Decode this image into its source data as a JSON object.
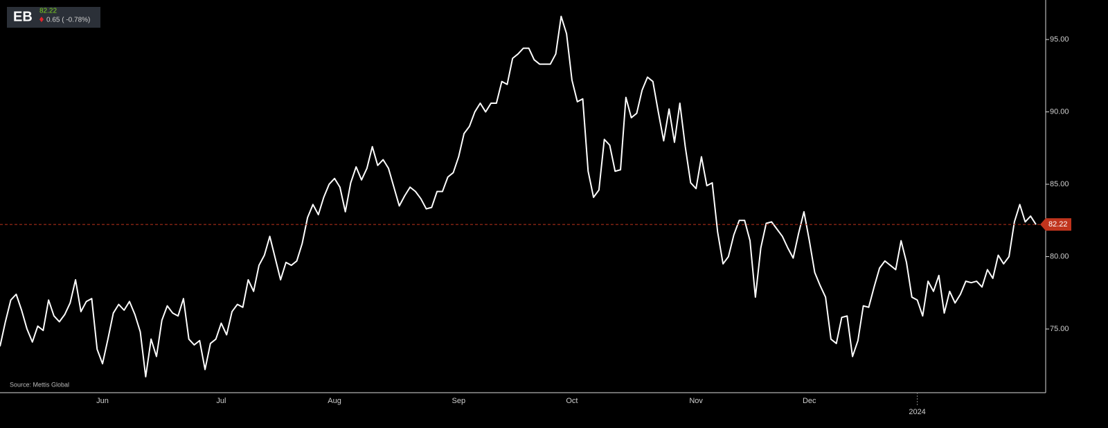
{
  "header": {
    "ticker": "EB",
    "change": "0.65 ( -0.78%)"
  },
  "source": "Source: Mettis Global",
  "chart_data": {
    "type": "line",
    "categories": [
      null,
      null,
      null,
      null,
      null,
      null,
      null,
      null,
      null,
      null,
      null,
      null,
      null,
      null,
      null,
      null,
      null,
      null,
      null,
      "Jun",
      null,
      null,
      null,
      null,
      null,
      null,
      null,
      null,
      null,
      null,
      null,
      null,
      null,
      null,
      null,
      null,
      null,
      null,
      null,
      null,
      null,
      "Jul",
      null,
      null,
      null,
      null,
      null,
      null,
      null,
      null,
      null,
      null,
      null,
      null,
      null,
      null,
      null,
      null,
      null,
      null,
      null,
      null,
      "Aug",
      null,
      null,
      null,
      null,
      null,
      null,
      null,
      null,
      null,
      null,
      null,
      null,
      null,
      null,
      null,
      null,
      null,
      null,
      null,
      null,
      null,
      null,
      "Sep",
      null,
      null,
      null,
      null,
      null,
      null,
      null,
      null,
      null,
      null,
      null,
      null,
      null,
      null,
      null,
      null,
      null,
      null,
      null,
      null,
      "Oct",
      null,
      null,
      null,
      null,
      null,
      null,
      null,
      null,
      null,
      null,
      null,
      null,
      null,
      null,
      null,
      null,
      null,
      null,
      null,
      null,
      null,
      null,
      "Nov",
      null,
      null,
      null,
      null,
      null,
      null,
      null,
      null,
      null,
      null,
      null,
      null,
      null,
      null,
      null,
      null,
      null,
      null,
      null,
      null,
      "Dec",
      null,
      null,
      null,
      null,
      null,
      null,
      null,
      null,
      null,
      null,
      null,
      null,
      null,
      null,
      null,
      null,
      null,
      null,
      null,
      "2024",
      null,
      null,
      null,
      null,
      null,
      null,
      null,
      null,
      null,
      null,
      null,
      null,
      null,
      null,
      null,
      null,
      null,
      null,
      null,
      null,
      null,
      null
    ],
    "values": [
      73.8,
      75.5,
      77.0,
      77.4,
      76.3,
      75.0,
      74.1,
      75.2,
      74.9,
      77.0,
      75.9,
      75.5,
      76.0,
      76.8,
      78.4,
      76.2,
      76.9,
      77.1,
      73.6,
      72.6,
      74.3,
      76.1,
      76.7,
      76.3,
      76.9,
      76.0,
      74.8,
      71.7,
      74.3,
      73.1,
      75.6,
      76.6,
      76.1,
      75.9,
      77.1,
      74.3,
      73.9,
      74.2,
      72.2,
      74.0,
      74.3,
      75.4,
      74.6,
      76.2,
      76.7,
      76.5,
      78.4,
      77.6,
      79.4,
      80.1,
      81.4,
      79.9,
      78.4,
      79.6,
      79.4,
      79.7,
      80.9,
      82.7,
      83.6,
      82.9,
      84.1,
      85.0,
      85.4,
      84.8,
      83.1,
      85.1,
      86.2,
      85.3,
      86.1,
      87.6,
      86.3,
      86.7,
      86.1,
      84.8,
      83.5,
      84.2,
      84.8,
      84.5,
      84.0,
      83.3,
      83.4,
      84.5,
      84.5,
      85.5,
      85.8,
      86.9,
      88.5,
      89.0,
      90.0,
      90.6,
      90.0,
      90.6,
      90.6,
      92.1,
      91.9,
      93.7,
      94.0,
      94.4,
      94.4,
      93.6,
      93.3,
      93.3,
      93.3,
      94.0,
      96.6,
      95.4,
      92.2,
      90.7,
      90.9,
      85.9,
      84.1,
      84.6,
      88.1,
      87.7,
      85.9,
      86.0,
      91.0,
      89.6,
      89.9,
      91.5,
      92.4,
      92.1,
      90.0,
      88.0,
      90.2,
      87.9,
      90.6,
      87.6,
      85.1,
      84.7,
      86.9,
      84.9,
      85.1,
      81.7,
      79.5,
      80.0,
      81.5,
      82.5,
      82.5,
      81.1,
      77.2,
      80.6,
      82.3,
      82.4,
      81.9,
      81.4,
      80.6,
      79.9,
      81.6,
      83.1,
      81.1,
      78.9,
      78.0,
      77.2,
      74.3,
      74.0,
      75.8,
      75.9,
      73.1,
      74.2,
      76.6,
      76.5,
      77.9,
      79.2,
      79.7,
      79.4,
      79.1,
      81.1,
      79.6,
      77.2,
      77.0,
      75.9,
      78.3,
      77.6,
      78.7,
      76.1,
      77.6,
      76.8,
      77.4,
      78.3,
      78.2,
      78.3,
      77.9,
      79.1,
      78.5,
      80.1,
      79.5,
      80.0,
      82.4,
      83.6,
      82.4,
      82.8,
      82.22
    ],
    "color": "#ffffff",
    "last_price": 82.22,
    "last_price_color": "#c0341d",
    "ylim": [
      70.6,
      97.73
    ],
    "yticks": [
      {
        "value": 75,
        "label": "75.00"
      },
      {
        "value": 80,
        "label": "80.00"
      },
      {
        "value": 85,
        "label": "85.00"
      },
      {
        "value": 90,
        "label": "90.00"
      },
      {
        "value": 95,
        "label": "95.00"
      }
    ]
  }
}
